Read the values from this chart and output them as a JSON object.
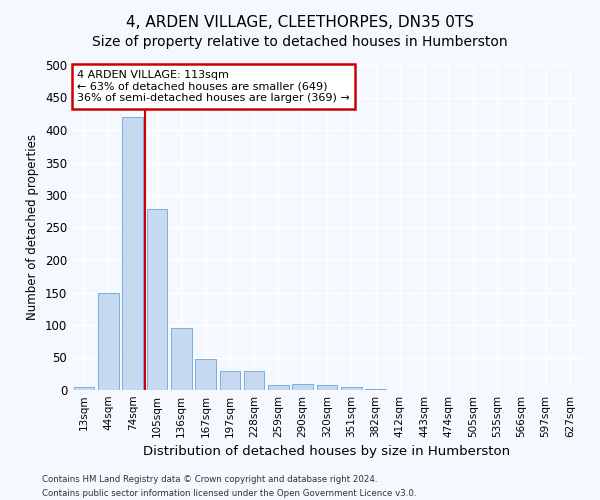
{
  "title": "4, ARDEN VILLAGE, CLEETHORPES, DN35 0TS",
  "subtitle": "Size of property relative to detached houses in Humberston",
  "xlabel": "Distribution of detached houses by size in Humberston",
  "ylabel": "Number of detached properties",
  "bar_color": "#c5d9f0",
  "bar_edge_color": "#7aade0",
  "categories": [
    "13sqm",
    "44sqm",
    "74sqm",
    "105sqm",
    "136sqm",
    "167sqm",
    "197sqm",
    "228sqm",
    "259sqm",
    "290sqm",
    "320sqm",
    "351sqm",
    "382sqm",
    "412sqm",
    "443sqm",
    "474sqm",
    "505sqm",
    "535sqm",
    "566sqm",
    "597sqm",
    "627sqm"
  ],
  "values": [
    5,
    150,
    420,
    278,
    95,
    48,
    29,
    29,
    7,
    10,
    8,
    4,
    2,
    0,
    0,
    0,
    0,
    0,
    0,
    0,
    0
  ],
  "ylim": [
    0,
    500
  ],
  "yticks": [
    0,
    50,
    100,
    150,
    200,
    250,
    300,
    350,
    400,
    450,
    500
  ],
  "property_line_x": 2.5,
  "annotation_line1": "4 ARDEN VILLAGE: 113sqm",
  "annotation_line2": "← 63% of detached houses are smaller (649)",
  "annotation_line3": "36% of semi-detached houses are larger (369) →",
  "annotation_box_color": "#ffffff",
  "annotation_box_edge": "#cc0000",
  "property_line_color": "#cc0000",
  "footer_line1": "Contains HM Land Registry data © Crown copyright and database right 2024.",
  "footer_line2": "Contains public sector information licensed under the Open Government Licence v3.0.",
  "background_color": "#f5f8fe",
  "plot_background": "#f5f8fe",
  "grid_color": "#ffffff",
  "title_fontsize": 11,
  "subtitle_fontsize": 10
}
